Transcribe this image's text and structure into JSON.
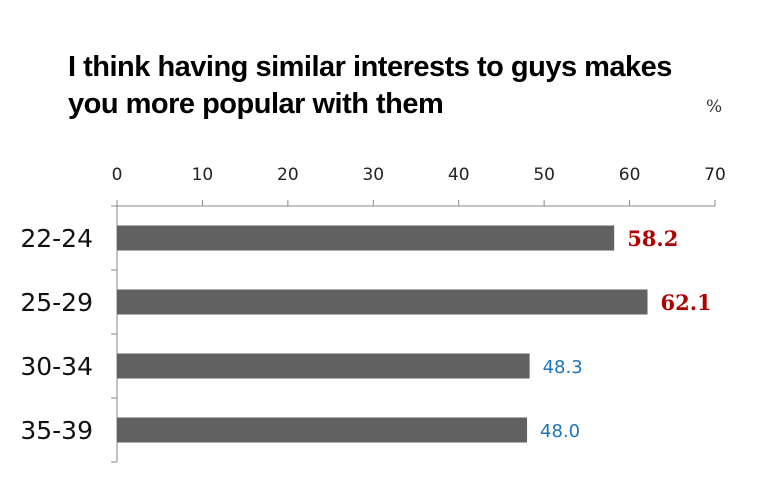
{
  "chart_data": {
    "type": "bar",
    "orientation": "horizontal",
    "title_lines": [
      "I think having similar interests to guys makes",
      "you more popular with them"
    ],
    "unit_label": "%",
    "categories": [
      "22-24",
      "25-29",
      "30-34",
      "35-39"
    ],
    "values": [
      58.2,
      62.1,
      48.3,
      48.0
    ],
    "value_labels": [
      "58.2",
      "62.1",
      "48.3",
      "48.0"
    ],
    "highlighted": [
      true,
      true,
      false,
      false
    ],
    "xlim": [
      0,
      70
    ],
    "x_ticks": [
      0,
      10,
      20,
      30,
      40,
      50,
      60,
      70
    ],
    "x_axis_position": "top",
    "grid": false,
    "colors": {
      "bar": "#616161",
      "highlight_label": "#b00000",
      "normal_label": "#1b75bc",
      "axis": "#888888"
    }
  }
}
